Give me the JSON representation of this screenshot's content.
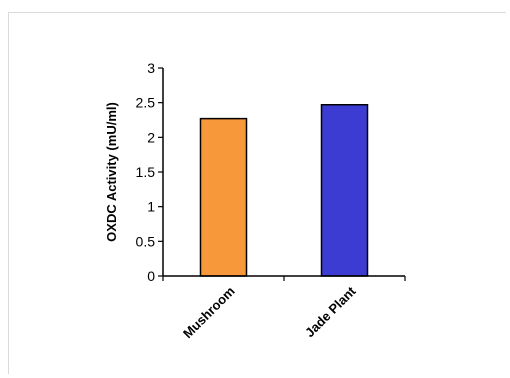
{
  "chart_data": {
    "type": "bar",
    "title": "",
    "xlabel": "",
    "ylabel": "OXDC Activity (mU/ml)",
    "categories": [
      "Mushroom",
      "Jade Plant"
    ],
    "values": [
      2.27,
      2.47
    ],
    "colors": [
      "#f7983a",
      "#3c3cd2"
    ],
    "ylim": [
      0,
      3
    ],
    "yticks": [
      "0",
      "0.5",
      "1",
      "1.5",
      "2",
      "2.5",
      "3"
    ],
    "grid": false
  }
}
